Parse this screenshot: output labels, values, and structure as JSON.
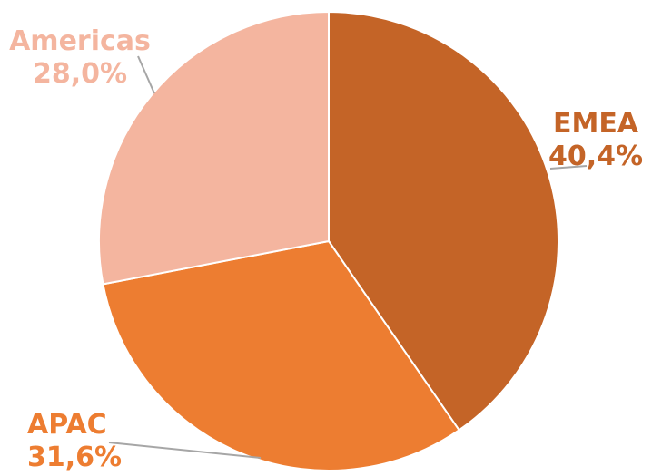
{
  "chart_data": {
    "type": "pie",
    "title": "",
    "slices": [
      {
        "label": "EMEA",
        "value": 40.4,
        "value_label": "40,4%",
        "color": "#C46427"
      },
      {
        "label": "APAC",
        "value": 31.6,
        "value_label": "31,6%",
        "color": "#ED7D31"
      },
      {
        "label": "Americas",
        "value": 28.0,
        "value_label": "28,0%",
        "color": "#F4B59F"
      }
    ],
    "start_angle_deg": 0,
    "direction": "clockwise",
    "legend": "none",
    "data_labels": "outside-with-leader-lines",
    "label_color": "#C46427"
  }
}
